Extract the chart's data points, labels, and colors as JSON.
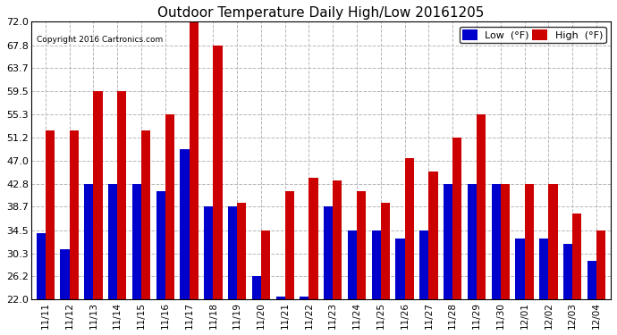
{
  "title": "Outdoor Temperature Daily High/Low 20161205",
  "copyright": "Copyright 2016 Cartronics.com",
  "legend_low": "Low  (°F)",
  "legend_high": "High  (°F)",
  "low_color": "#0000cc",
  "high_color": "#cc0000",
  "bg_color": "#ffffff",
  "plot_bg_color": "#ffffff",
  "grid_color": "#b0b0b0",
  "ylim_min": 22.0,
  "ylim_max": 72.0,
  "yticks": [
    22.0,
    26.2,
    30.3,
    34.5,
    38.7,
    42.8,
    47.0,
    51.2,
    55.3,
    59.5,
    63.7,
    67.8,
    72.0
  ],
  "categories": [
    "11/11",
    "11/12",
    "11/13",
    "11/14",
    "11/15",
    "11/16",
    "11/17",
    "11/18",
    "11/19",
    "11/20",
    "11/21",
    "11/22",
    "11/23",
    "11/24",
    "11/25",
    "11/26",
    "11/27",
    "11/28",
    "11/29",
    "11/30",
    "12/01",
    "12/02",
    "12/03",
    "12/04"
  ],
  "highs": [
    52.5,
    52.5,
    59.5,
    59.5,
    52.5,
    55.3,
    72.0,
    67.8,
    39.5,
    34.5,
    41.5,
    44.0,
    43.5,
    41.5,
    39.5,
    47.5,
    45.0,
    51.2,
    55.3,
    42.8,
    42.8,
    42.8,
    37.5,
    34.5
  ],
  "lows": [
    34.0,
    31.0,
    42.8,
    42.8,
    42.8,
    41.5,
    49.0,
    38.7,
    38.7,
    26.2,
    22.5,
    22.5,
    38.7,
    34.5,
    34.5,
    33.0,
    34.5,
    42.8,
    42.8,
    42.8,
    33.0,
    33.0,
    32.0,
    29.0
  ]
}
